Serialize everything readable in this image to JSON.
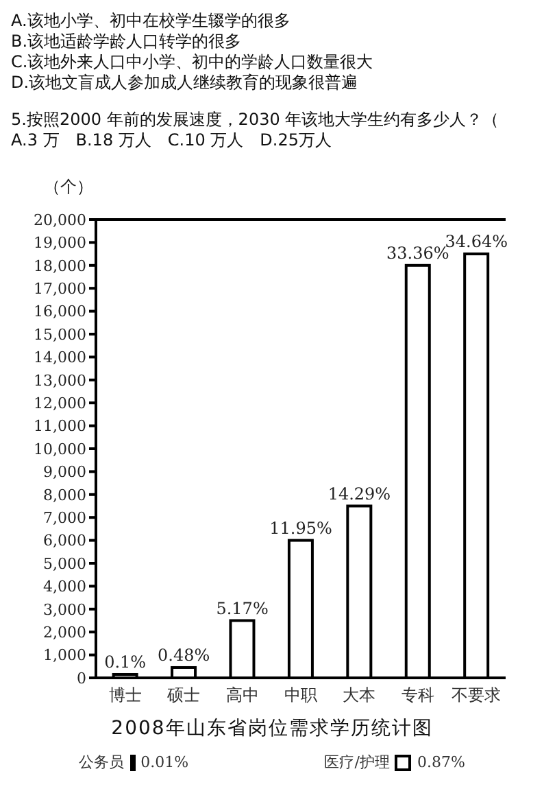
{
  "chart_data": {
    "type": "bar",
    "title": "2008年山东省岗位需求学历统计图",
    "ylabel": "（个）",
    "annotations": [
      "A.该地小学、初中在校学生辍学的很多",
      "B.该地适龄学龄人口转学的很多",
      "C.该地外来人口中小学、初中的学龄人口数量很大",
      "D.该地文盲成人参加成人继续教育的现象很普遍",
      "5.按照2000 年前的发展速度，2030 年该地大学生约有多少人？（",
      "A.3 万　B.18 万人　C.10 万人　D.25万人",
      {
        "text": "0.1%",
        "x": "博士",
        "y": 150
      },
      {
        "text": "0.48%",
        "x": "硕士",
        "y": 450
      },
      {
        "text": "5.17%",
        "x": "高中",
        "y": 2500
      },
      {
        "text": "11.95%",
        "x": "中职",
        "y": 6000
      },
      {
        "text": "14.29%",
        "x": "大本",
        "y": 7500
      },
      {
        "text": "33.36%",
        "x": "专科",
        "y": 18000
      },
      {
        "text": "34.64%",
        "x": "不要求",
        "y": 18500
      },
      "公务员",
      "0.01%",
      "医疗/护理",
      "0.87%"
    ],
    "categories": [
      "博士",
      "硕士",
      "高中",
      "中职",
      "大本",
      "专科",
      "不要求"
    ],
    "values": [
      150,
      450,
      2500,
      6000,
      7500,
      18000,
      18500
    ],
    "color": "#ffffff",
    "ylim": [
      0,
      20000
    ],
    "yticks": [
      0,
      {
        "value": 1000,
        "label": "1,000"
      },
      {
        "value": 2000,
        "label": "2,000"
      },
      {
        "value": 3000,
        "label": "3,000"
      },
      {
        "value": 4000,
        "label": "4,000"
      },
      {
        "value": 5000,
        "label": "5,000"
      },
      {
        "value": 6000,
        "label": "6,000"
      },
      {
        "value": 7000,
        "label": "7,000"
      },
      {
        "value": 8000,
        "label": "8,000"
      },
      {
        "value": 9000,
        "label": "9,000"
      },
      {
        "value": 10000,
        "label": "10,000"
      },
      {
        "value": 11000,
        "label": "11,000"
      },
      {
        "value": 12000,
        "label": "12,000"
      },
      {
        "value": 13000,
        "label": "13,000"
      },
      {
        "value": 14000,
        "label": "14,000"
      },
      {
        "value": 15000,
        "label": "15,000"
      },
      {
        "value": 16000,
        "label": "16,000"
      },
      {
        "value": 17000,
        "label": "17,000"
      },
      {
        "value": 18000,
        "label": "18,000"
      },
      {
        "value": 19000,
        "label": "19,000"
      },
      {
        "value": 20000,
        "label": "20,000"
      }
    ],
    "grid": false,
    "legend": false
  }
}
